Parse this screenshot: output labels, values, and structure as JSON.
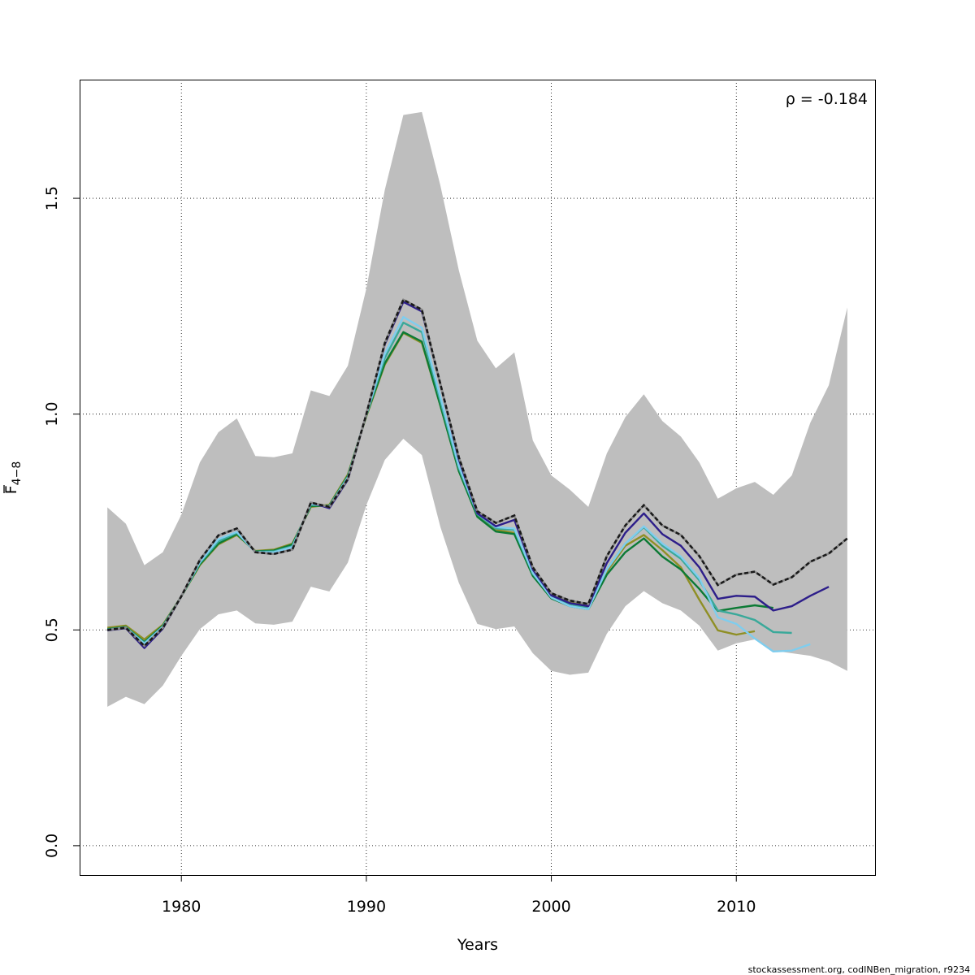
{
  "chart_data": {
    "type": "line",
    "xlabel": "Years",
    "ylabel_main": "F",
    "ylabel_sub": "4−8",
    "annotation": "ρ = -0.184",
    "footer": "stockassessment.org, codINBen_migration, r9234",
    "xlim": [
      1974.5,
      2017.5
    ],
    "ylim": [
      -0.068,
      1.775
    ],
    "xticks": [
      1980,
      1990,
      2000,
      2010
    ],
    "xtick_labels": [
      "1980",
      "1990",
      "2000",
      "2010"
    ],
    "yticks": [
      0.0,
      0.5,
      1.0,
      1.5
    ],
    "ytick_labels": [
      "0.0",
      "0.5",
      "1.0",
      "1.5"
    ],
    "grid": true,
    "band": {
      "color": "#bebebe",
      "years_start": 1976,
      "upper": [
        0.784,
        0.746,
        0.65,
        0.68,
        0.767,
        0.888,
        0.958,
        0.99,
        0.903,
        0.9,
        0.909,
        1.055,
        1.042,
        1.112,
        1.291,
        1.52,
        1.693,
        1.7,
        1.53,
        1.333,
        1.17,
        1.106,
        1.143,
        0.939,
        0.858,
        0.825,
        0.785,
        0.909,
        0.993,
        1.046,
        0.984,
        0.948,
        0.888,
        0.804,
        0.828,
        0.843,
        0.813,
        0.858,
        0.98,
        1.067,
        1.247
      ],
      "lower": [
        0.322,
        0.345,
        0.328,
        0.371,
        0.44,
        0.502,
        0.536,
        0.545,
        0.515,
        0.512,
        0.519,
        0.6,
        0.589,
        0.656,
        0.789,
        0.894,
        0.943,
        0.905,
        0.739,
        0.609,
        0.514,
        0.502,
        0.508,
        0.446,
        0.405,
        0.396,
        0.401,
        0.491,
        0.555,
        0.59,
        0.562,
        0.545,
        0.51,
        0.452,
        0.469,
        0.478,
        0.452,
        0.446,
        0.44,
        0.427,
        0.405
      ]
    },
    "series": [
      {
        "color": "#8f8f25",
        "dashed": false,
        "years_start": 1976,
        "values": [
          0.505,
          0.51,
          0.478,
          0.512,
          0.578,
          0.65,
          0.698,
          0.72,
          0.683,
          0.686,
          0.7,
          0.785,
          0.79,
          0.86,
          0.995,
          1.115,
          1.188,
          1.165,
          1.02,
          0.868,
          0.765,
          0.732,
          0.725,
          0.63,
          0.58,
          0.565,
          0.56,
          0.635,
          0.695,
          0.72,
          0.685,
          0.645,
          0.57,
          0.499,
          0.489,
          0.497
        ]
      },
      {
        "color": "#0c7a35",
        "dashed": false,
        "years_start": 1976,
        "values": [
          0.502,
          0.507,
          0.472,
          0.51,
          0.578,
          0.652,
          0.7,
          0.722,
          0.682,
          0.684,
          0.698,
          0.787,
          0.788,
          0.857,
          0.997,
          1.118,
          1.19,
          1.168,
          1.02,
          0.868,
          0.762,
          0.728,
          0.722,
          0.625,
          0.573,
          0.555,
          0.548,
          0.628,
          0.68,
          0.712,
          0.67,
          0.64,
          0.595,
          0.544,
          0.551,
          0.557,
          0.551
        ]
      },
      {
        "color": "#3aa99a",
        "dashed": false,
        "years_start": 1976,
        "values": [
          0.501,
          0.506,
          0.47,
          0.508,
          0.578,
          0.655,
          0.705,
          0.725,
          0.681,
          0.682,
          0.694,
          0.79,
          0.787,
          0.855,
          0.998,
          1.13,
          1.212,
          1.19,
          1.03,
          0.875,
          0.768,
          0.735,
          0.732,
          0.63,
          0.578,
          0.56,
          0.552,
          0.64,
          0.7,
          0.738,
          0.695,
          0.665,
          0.615,
          0.545,
          0.536,
          0.523,
          0.495,
          0.493
        ]
      },
      {
        "color": "#7fcdee",
        "dashed": false,
        "years_start": 1976,
        "values": [
          0.5,
          0.505,
          0.468,
          0.507,
          0.578,
          0.657,
          0.71,
          0.727,
          0.68,
          0.68,
          0.692,
          0.792,
          0.786,
          0.853,
          0.999,
          1.14,
          1.225,
          1.2,
          1.04,
          0.88,
          0.77,
          0.738,
          0.735,
          0.632,
          0.575,
          0.555,
          0.548,
          0.64,
          0.7,
          0.74,
          0.7,
          0.67,
          0.62,
          0.529,
          0.514,
          0.48,
          0.45,
          0.452,
          0.467
        ]
      },
      {
        "color": "#2d1e8a",
        "dashed": false,
        "years_start": 1976,
        "values": [
          0.499,
          0.504,
          0.458,
          0.503,
          0.578,
          0.662,
          0.719,
          0.735,
          0.68,
          0.676,
          0.686,
          0.795,
          0.782,
          0.848,
          1.0,
          1.162,
          1.26,
          1.238,
          1.07,
          0.895,
          0.77,
          0.74,
          0.755,
          0.64,
          0.58,
          0.562,
          0.555,
          0.655,
          0.725,
          0.77,
          0.722,
          0.695,
          0.645,
          0.572,
          0.579,
          0.577,
          0.545,
          0.555,
          0.579,
          0.6
        ]
      },
      {
        "color": "#1a1a1a",
        "dashed": true,
        "years_start": 1976,
        "values": [
          0.5,
          0.505,
          0.463,
          0.505,
          0.578,
          0.662,
          0.719,
          0.735,
          0.68,
          0.676,
          0.686,
          0.795,
          0.785,
          0.85,
          1.0,
          1.165,
          1.265,
          1.242,
          1.07,
          0.9,
          0.775,
          0.748,
          0.765,
          0.645,
          0.585,
          0.568,
          0.56,
          0.671,
          0.742,
          0.789,
          0.742,
          0.72,
          0.671,
          0.604,
          0.628,
          0.635,
          0.605,
          0.622,
          0.658,
          0.677,
          0.712
        ]
      }
    ]
  }
}
